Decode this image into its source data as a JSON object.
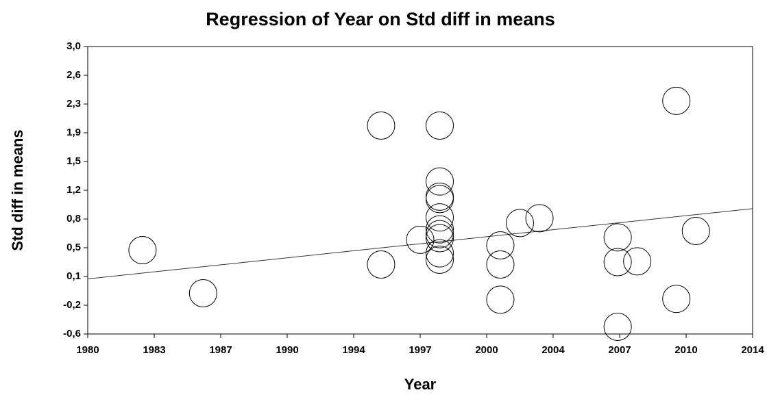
{
  "chart_data": {
    "type": "scatter",
    "title": "Regression of Year on Std diff in means",
    "x_label": "Year",
    "y_label": "Std diff in means",
    "xlim": [
      1980,
      2014
    ],
    "xticks": [
      1980,
      {
        "value": 1983.4,
        "label": "1983"
      },
      {
        "value": 1986.8,
        "label": "1987"
      },
      {
        "value": 1990.2,
        "label": "1990"
      },
      {
        "value": 1993.6,
        "label": "1994"
      },
      1997,
      {
        "value": 2000.4,
        "label": "2000"
      },
      {
        "value": 2003.8,
        "label": "2004"
      },
      {
        "value": 2007.2,
        "label": "2007"
      },
      {
        "value": 2010.6,
        "label": "2010"
      },
      2014
    ],
    "ylim": [
      -0.6,
      3.0
    ],
    "yticks": [
      {
        "value": -0.6,
        "label": "-0,6"
      },
      {
        "value": -0.24,
        "label": "-0,2"
      },
      {
        "value": 0.12,
        "label": "0,1"
      },
      {
        "value": 0.48,
        "label": "0,5"
      },
      {
        "value": 0.84,
        "label": "0,8"
      },
      {
        "value": 1.2,
        "label": "1,2"
      },
      {
        "value": 1.56,
        "label": "1,5"
      },
      {
        "value": 1.92,
        "label": "1,9"
      },
      {
        "value": 2.28,
        "label": "2,3"
      },
      {
        "value": 2.64,
        "label": "2,6"
      },
      {
        "value": 3.0,
        "label": "3,0"
      }
    ],
    "x": [
      1982.8,
      1985.9,
      1995.0,
      1995.0,
      1997.0,
      1998.0,
      1998.0,
      1998.0,
      1998.0,
      1998.0,
      1998.0,
      1998.0,
      1998.0,
      1998.0,
      1998.0,
      2001.1,
      2001.1,
      2001.1,
      2002.1,
      2003.1,
      2007.1,
      2007.1,
      2008.1,
      2007.1,
      2010.1,
      2010.1,
      2011.1
    ],
    "y": [
      0.45,
      -0.09,
      2.01,
      0.27,
      0.58,
      2.01,
      1.31,
      1.12,
      1.09,
      0.86,
      0.71,
      0.65,
      0.6,
      0.41,
      0.33,
      0.51,
      0.27,
      -0.17,
      0.79,
      0.85,
      0.61,
      0.3,
      0.31,
      -0.51,
      2.32,
      -0.16,
      0.69
    ],
    "regression": {
      "x": [
        1980,
        2014
      ],
      "y": [
        0.09,
        0.97
      ]
    }
  }
}
